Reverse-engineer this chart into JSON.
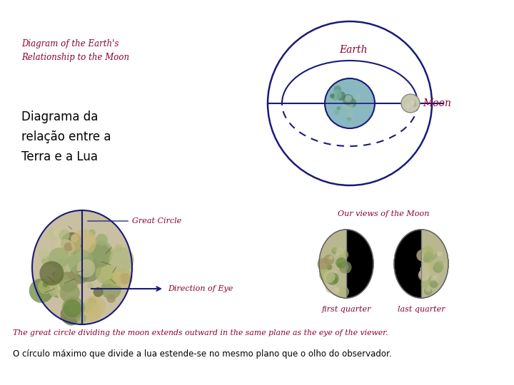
{
  "bg_color": "#ffffff",
  "title_en": "Diagram of the Earth's\nRelationship to the Moon",
  "title_pt": "Diagrama da\nrelação entre a\nTerra e a Lua",
  "label_earth": "Earth",
  "label_moon": "Moon",
  "label_great_circle": "Great Circle",
  "label_direction": "Direction of Eye",
  "label_our_views": "Our views of the Moon",
  "label_first_quarter": "first quarter",
  "label_last_quarter": "last quarter",
  "text_en": "The great circle dividing the moon extends outward in the same plane as the eye of the viewer.",
  "text_pt": "O círculo máximo que divide a lua estende-se no mesmo plano que o olho do observador.",
  "dark_red": "#8B0032",
  "navy": "#1a1a7a"
}
